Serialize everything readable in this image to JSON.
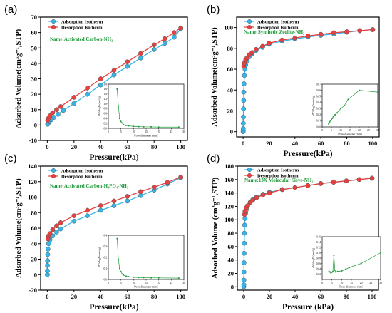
{
  "chart_data": [
    {
      "type": "line",
      "panel_label": "(a)",
      "xlabel": "Pressure(kPa)",
      "ylabel": "Adsorbed Volume(cm³g⁻¹,STP)",
      "xlim": [
        -5,
        105
      ],
      "ylim": [
        -10,
        70
      ],
      "xticks": [
        0,
        20,
        40,
        60,
        80,
        100
      ],
      "yticks": [
        -10,
        0,
        10,
        20,
        30,
        40,
        50,
        60,
        70
      ],
      "annotation": "Name:Activated Carbon-NH₂",
      "legend": "top-left",
      "series": [
        {
          "name": "Adsorption Isotherm",
          "color": "#36b6e8",
          "x": [
            0.3,
            0.7,
            1.5,
            3,
            5,
            8,
            12,
            20,
            30,
            40,
            50,
            60,
            70,
            80,
            88,
            95,
            100
          ],
          "y": [
            0.5,
            1.2,
            2.2,
            3.5,
            5,
            7,
            9.5,
            14,
            20,
            26,
            32.5,
            38,
            43.5,
            49,
            53,
            57,
            62.5
          ]
        },
        {
          "name": "Desorption Isotherm",
          "color": "#e8403f",
          "x": [
            0.3,
            1,
            2,
            4,
            7,
            10,
            20,
            30,
            40,
            50,
            60,
            70,
            80,
            88,
            95,
            100
          ],
          "y": [
            3,
            4.5,
            6,
            8,
            10,
            12,
            18,
            24,
            30,
            35.5,
            41,
            46.5,
            52,
            56,
            60,
            63
          ]
        }
      ],
      "inset": {
        "xlabel": "Pore diameter (nm)",
        "ylabel": "dV/dlogD (cm³/g)",
        "xlim": [
          0,
          30
        ],
        "ylim": [
          0,
          1.8
        ],
        "xticks": [
          0,
          5,
          10,
          15,
          20,
          25,
          30
        ],
        "yticks": [
          0.0,
          0.2,
          0.4,
          0.6,
          0.8,
          1.0,
          1.2,
          1.4,
          1.6,
          1.8
        ],
        "color": "#1e9a3a",
        "x": [
          3.5,
          4,
          4.5,
          5,
          5.5,
          6,
          7,
          8,
          10,
          12,
          14,
          17,
          20,
          28
        ],
        "y": [
          1.6,
          0.9,
          0.4,
          0.28,
          0.22,
          0.15,
          0.12,
          0.1,
          0.08,
          0.07,
          0.06,
          0.06,
          0.05,
          0.05
        ]
      }
    },
    {
      "type": "line",
      "panel_label": "(b)",
      "xlabel": "Pressure(kPa)",
      "ylabel": "Adsorbed Volume(cm³g⁻¹,STP)",
      "xlim": [
        -5,
        105
      ],
      "ylim": [
        -5,
        110
      ],
      "xticks": [
        0,
        20,
        40,
        60,
        80,
        100
      ],
      "yticks": [
        0,
        20,
        40,
        60,
        80,
        100
      ],
      "annotation": "Name:Synthetic Zeolite-NH₂",
      "legend": "top-left",
      "series": [
        {
          "name": "Adsorption Isotherm",
          "color": "#36b6e8",
          "x": [
            0.02,
            0.05,
            0.1,
            0.15,
            0.2,
            0.3,
            0.4,
            0.5,
            0.7,
            1,
            1.5,
            2,
            3,
            5,
            7,
            10,
            15,
            20,
            30,
            40,
            50,
            60,
            70,
            80,
            90,
            100
          ],
          "y": [
            0,
            1,
            3,
            8,
            14,
            22,
            30,
            38,
            46,
            54,
            60,
            64,
            68,
            72,
            75,
            78,
            81,
            84,
            87,
            89,
            91,
            92.5,
            94,
            95.5,
            97,
            98
          ]
        },
        {
          "name": "Desorption Isotherm",
          "color": "#e8403f",
          "x": [
            0.5,
            1,
            2,
            3,
            5,
            7,
            10,
            15,
            20,
            30,
            40,
            50,
            60,
            70,
            80,
            90,
            100
          ],
          "y": [
            63,
            66,
            69,
            71,
            74,
            76,
            79,
            82,
            85,
            88,
            90,
            92,
            93.5,
            95,
            96,
            97,
            98
          ]
        }
      ],
      "inset": {
        "xlabel": "Pore diameter (nm)",
        "ylabel": "dV/dlogD (cm³/g)",
        "xlim": [
          0,
          30
        ],
        "ylim": [
          0,
          0.07
        ],
        "xticks": [
          0,
          5,
          10,
          15,
          20,
          25,
          30
        ],
        "yticks": [
          0.0,
          0.01,
          0.02,
          0.03,
          0.04,
          0.05,
          0.06,
          0.07
        ],
        "color": "#1e9a3a",
        "x": [
          3.5,
          4,
          4.5,
          5,
          5.5,
          6,
          7,
          8,
          10,
          12,
          14,
          20,
          30
        ],
        "y": [
          0.005,
          0.008,
          0.01,
          0.012,
          0.014,
          0.017,
          0.02,
          0.023,
          0.03,
          0.035,
          0.045,
          0.06,
          0.057
        ]
      }
    },
    {
      "type": "line",
      "panel_label": "(c)",
      "xlabel": "Pressure(kPa)",
      "ylabel": "Adsorbed Volume(cm³g⁻¹,STP)",
      "xlim": [
        -5,
        105
      ],
      "ylim": [
        -20,
        140
      ],
      "xticks": [
        0,
        20,
        40,
        60,
        80,
        100
      ],
      "yticks": [
        -20,
        0,
        20,
        40,
        60,
        80,
        100,
        120,
        140
      ],
      "annotation": "Name:Activated Carbon-H₃PO₄-NH₃",
      "legend": "top-left",
      "series": [
        {
          "name": "Adsorption Isotherm",
          "color": "#36b6e8",
          "x": [
            0.02,
            0.05,
            0.1,
            0.2,
            0.3,
            0.5,
            1,
            2,
            4,
            7,
            10,
            20,
            30,
            40,
            50,
            60,
            70,
            80,
            90,
            100
          ],
          "y": [
            0,
            5,
            12,
            18,
            26,
            33,
            40,
            45,
            50,
            55,
            59,
            69,
            76,
            83,
            89,
            95,
            102,
            109,
            117,
            125
          ]
        },
        {
          "name": "Desorption Isotherm",
          "color": "#e8403f",
          "x": [
            0.5,
            1,
            2,
            4,
            7,
            10,
            20,
            30,
            40,
            50,
            60,
            70,
            80,
            90,
            100
          ],
          "y": [
            46,
            50,
            53,
            58,
            63,
            67,
            76,
            83,
            89,
            95,
            101,
            107,
            113,
            119,
            126
          ]
        }
      ],
      "inset": {
        "xlabel": "Pore diameter (nm)",
        "ylabel": "dV/dlogD (cm³/g)",
        "xlim": [
          0,
          30
        ],
        "ylim": [
          0,
          0.4
        ],
        "xticks": [
          0,
          5,
          10,
          15,
          20,
          25,
          30
        ],
        "yticks": [
          0.0,
          0.1,
          0.2,
          0.3,
          0.4
        ],
        "color": "#1e9a3a",
        "x": [
          3.5,
          4,
          4.5,
          5,
          5.5,
          6,
          7,
          8,
          10,
          12,
          14,
          17,
          20,
          28
        ],
        "y": [
          0.37,
          0.18,
          0.1,
          0.07,
          0.05,
          0.04,
          0.03,
          0.025,
          0.02,
          0.018,
          0.016,
          0.015,
          0.014,
          0.012
        ]
      }
    },
    {
      "type": "line",
      "panel_label": "(d)",
      "xlabel": "Pressure (kPa)",
      "ylabel": "Adsorbed Volume (cm³g⁻¹,STP)",
      "xlim": [
        -5,
        105
      ],
      "ylim": [
        -5,
        180
      ],
      "xticks": [
        0,
        20,
        40,
        60,
        80,
        100
      ],
      "yticks": [
        0,
        20,
        40,
        60,
        80,
        100,
        120,
        140,
        160,
        180
      ],
      "annotation": "Name:13X Molecular Sieve-NH₂",
      "legend": "top-left",
      "series": [
        {
          "name": "Adsorption Isotherm",
          "color": "#36b6e8",
          "x": [
            0.02,
            0.05,
            0.1,
            0.15,
            0.2,
            0.3,
            0.4,
            0.5,
            0.7,
            1,
            1.5,
            2,
            3,
            5,
            7,
            10,
            15,
            20,
            30,
            40,
            50,
            60,
            70,
            80,
            90,
            100
          ],
          "y": [
            0,
            3,
            10,
            22,
            36,
            50,
            65,
            80,
            92,
            102,
            110,
            115,
            120,
            126,
            130,
            134,
            138,
            141,
            145,
            148,
            151,
            154,
            156,
            158,
            160,
            162
          ]
        },
        {
          "name": "Desorption Isotherm",
          "color": "#e8403f",
          "x": [
            0.5,
            1,
            2,
            3,
            5,
            7,
            10,
            15,
            20,
            30,
            40,
            50,
            60,
            70,
            80,
            90,
            100
          ],
          "y": [
            108,
            113,
            118,
            121,
            126,
            129,
            133,
            137,
            140,
            145,
            148,
            151,
            154,
            156,
            158,
            160,
            162
          ]
        }
      ],
      "inset": {
        "xlabel": "Pore diameter (nm)",
        "ylabel": "dV/dlogD (cm³/g)",
        "xlim": [
          0,
          30
        ],
        "ylim": [
          0,
          0.16
        ],
        "xticks": [
          0,
          5,
          10,
          15,
          20,
          25,
          30
        ],
        "yticks": [
          0.02,
          0.04,
          0.06,
          0.08,
          0.1,
          0.12,
          0.14,
          0.16
        ],
        "color": "#1e9a3a",
        "x": [
          3.5,
          4,
          4.5,
          5,
          5.5,
          6,
          6.5,
          7,
          8,
          10,
          12,
          14,
          20,
          30
        ],
        "y": [
          0.03,
          0.028,
          0.025,
          0.027,
          0.03,
          0.09,
          0.035,
          0.028,
          0.03,
          0.032,
          0.038,
          0.045,
          0.06,
          0.1
        ]
      }
    }
  ]
}
